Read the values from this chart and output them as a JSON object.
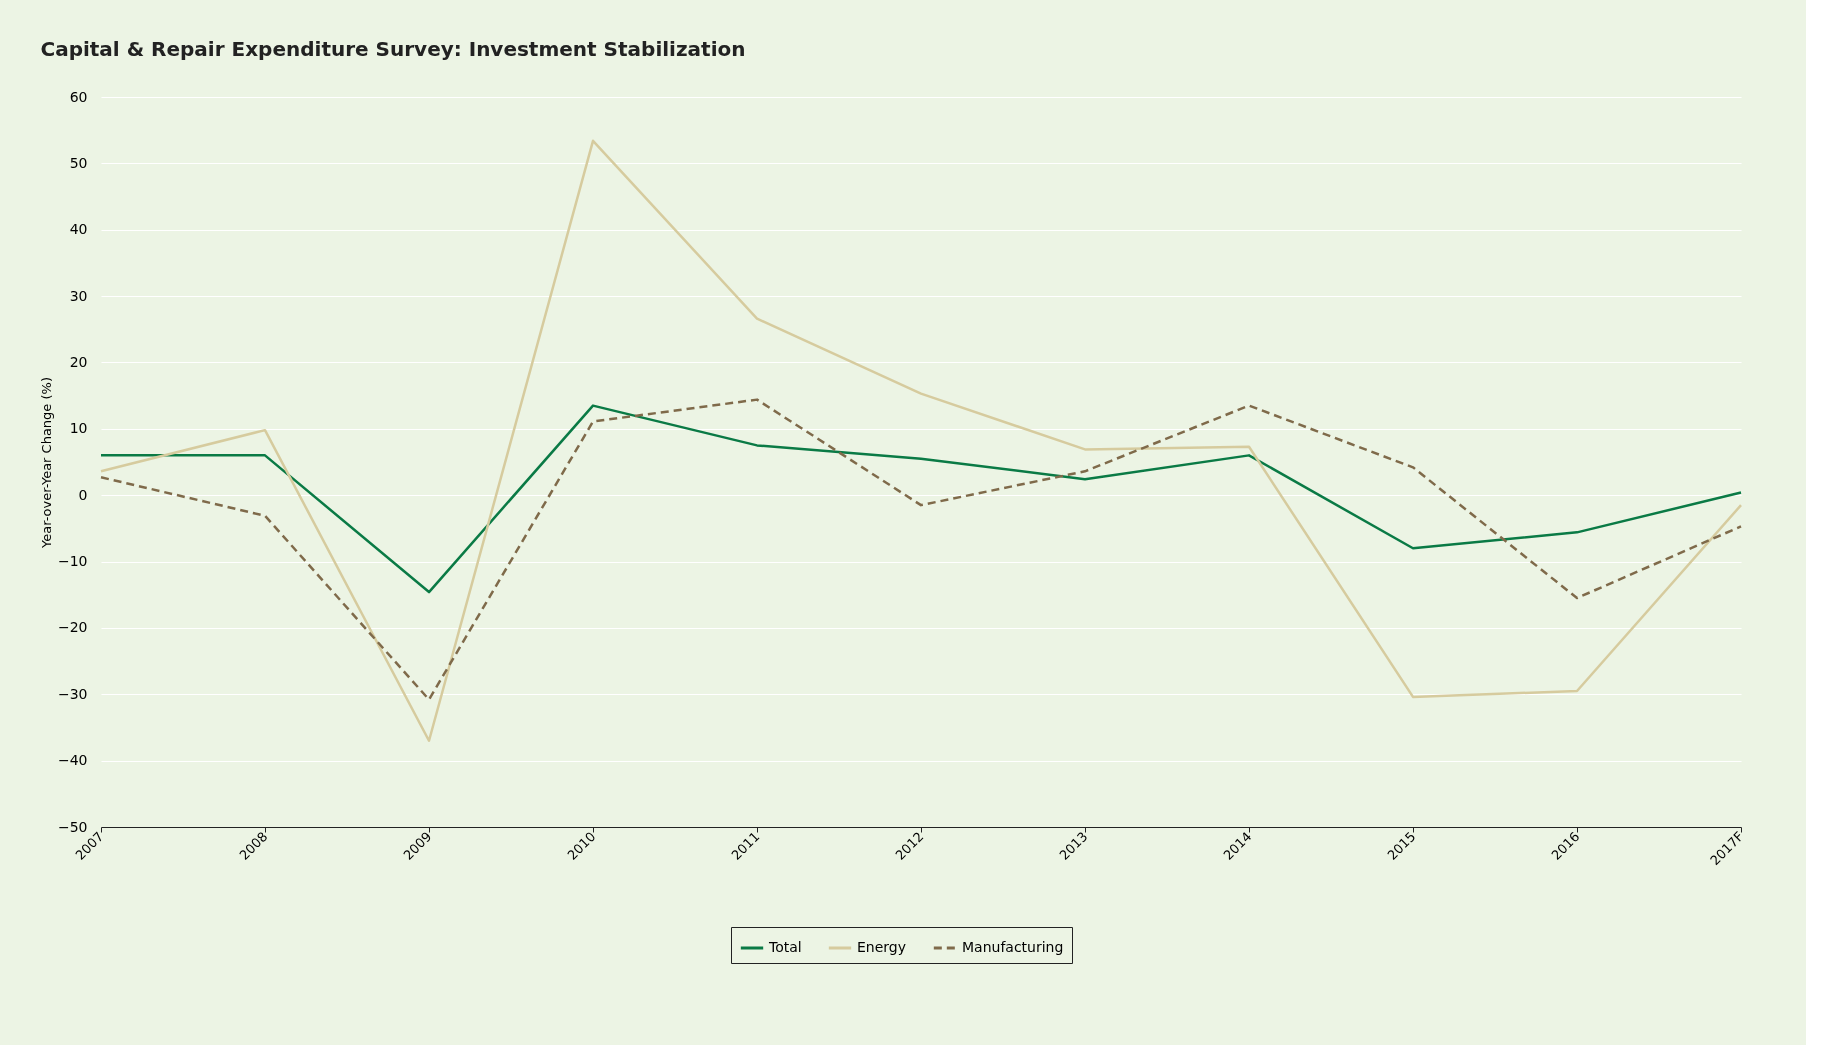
{
  "chart_data": {
    "type": "line",
    "title": "Capital & Repair Expenditure Survey: Investment Stabilization",
    "ylabel": "Year-over-Year Change (%)",
    "categories": [
      "2007",
      "2008",
      "2009",
      "2010",
      "2011",
      "2012",
      "2013",
      "2014",
      "2015",
      "2016",
      "2017F"
    ],
    "series": [
      {
        "name": "Total",
        "color": "#0a7a45",
        "line_style": "solid",
        "values": [
          6.0,
          6.0,
          -14.6,
          13.5,
          7.5,
          5.5,
          2.4,
          6.0,
          -8.0,
          -5.6,
          0.4
        ]
      },
      {
        "name": "Energy",
        "color": "#d6cb9e",
        "line_style": "solid",
        "values": [
          3.6,
          9.8,
          -37.0,
          53.4,
          26.6,
          15.3,
          6.9,
          7.3,
          -30.4,
          -29.5,
          -1.5
        ]
      },
      {
        "name": "Manufacturing",
        "color": "#7f6a4a",
        "line_style": "dashed",
        "values": [
          2.7,
          -3.1,
          -30.8,
          11.1,
          14.4,
          -1.5,
          3.6,
          13.5,
          4.2,
          -15.5,
          -4.7
        ]
      }
    ],
    "ylim": [
      -50,
      60
    ],
    "yticks": [
      -50,
      -40,
      -30,
      -20,
      -10,
      0,
      10,
      20,
      30,
      40,
      50,
      60
    ],
    "grid": "y",
    "legend": "bottom",
    "marker": "none"
  }
}
